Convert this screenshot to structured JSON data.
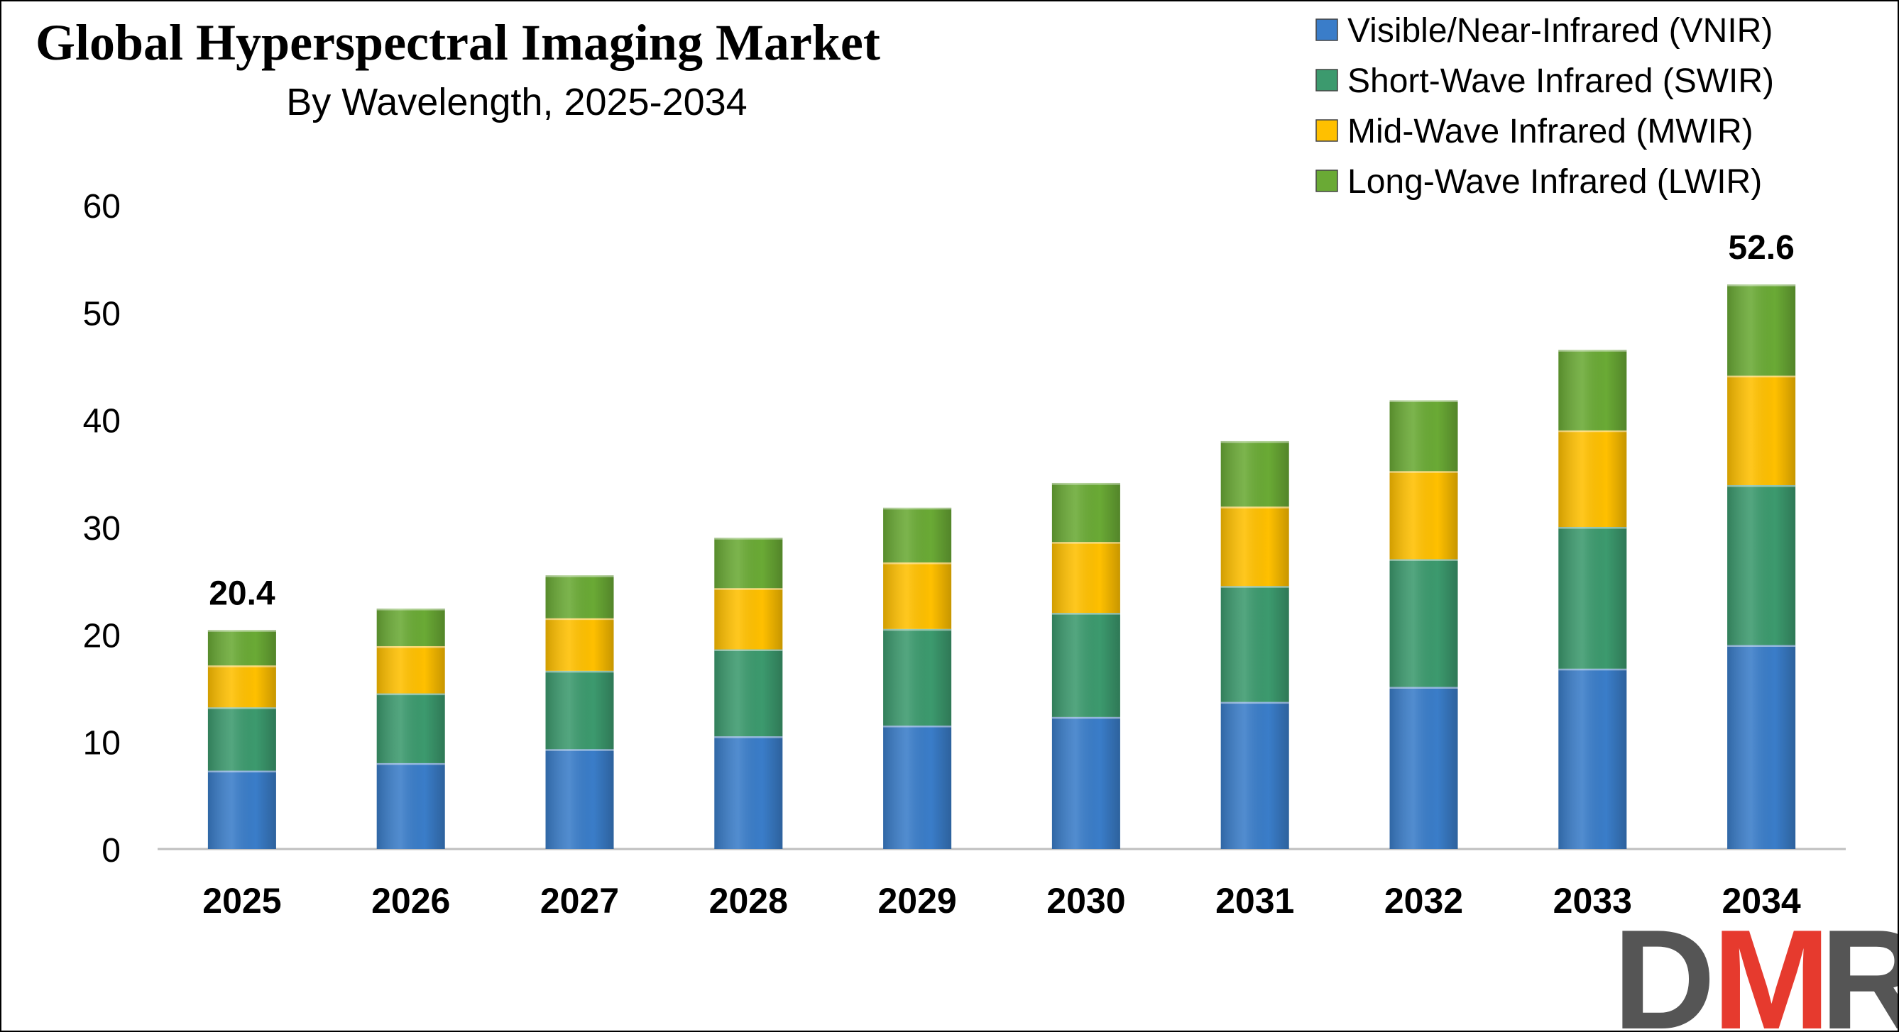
{
  "chart_data": {
    "type": "bar",
    "stacked": true,
    "title": "Global Hyperspectral Imaging Market",
    "subtitle": "By Wavelength, 2025-2034",
    "xlabel": "",
    "ylabel": "",
    "ylim": [
      0,
      60
    ],
    "yticks": [
      0,
      10,
      20,
      30,
      40,
      50,
      60
    ],
    "grid": false,
    "legend_position": "top-right",
    "categories": [
      "2025",
      "2026",
      "2027",
      "2028",
      "2029",
      "2030",
      "2031",
      "2032",
      "2033",
      "2034"
    ],
    "series": [
      {
        "name": "Visible/Near-Infrared (VNIR)",
        "color": "#3A7DC9",
        "values": [
          7.3,
          8.0,
          9.3,
          10.5,
          11.5,
          12.3,
          13.7,
          15.1,
          16.8,
          19.0
        ]
      },
      {
        "name": "Short-Wave Infrared (SWIR)",
        "color": "#3C9A6E",
        "values": [
          5.9,
          6.5,
          7.3,
          8.1,
          9.0,
          9.7,
          10.8,
          11.9,
          13.2,
          14.9
        ]
      },
      {
        "name": "Mid-Wave Infrared (MWIR)",
        "color": "#FFC000",
        "values": [
          3.9,
          4.4,
          4.9,
          5.7,
          6.2,
          6.6,
          7.4,
          8.2,
          9.0,
          10.2
        ]
      },
      {
        "name": "Long-Wave Infrared (LWIR)",
        "color": "#6AAA35",
        "values": [
          3.3,
          3.5,
          4.0,
          4.7,
          5.1,
          5.5,
          6.1,
          6.6,
          7.5,
          8.5
        ]
      }
    ],
    "annotations": [
      {
        "category": "2025",
        "text": "20.4"
      },
      {
        "category": "2034",
        "text": "52.6"
      }
    ]
  },
  "logo": {
    "text": "DMR",
    "colors": [
      "#555555",
      "#E63A2E",
      "#555555"
    ]
  }
}
